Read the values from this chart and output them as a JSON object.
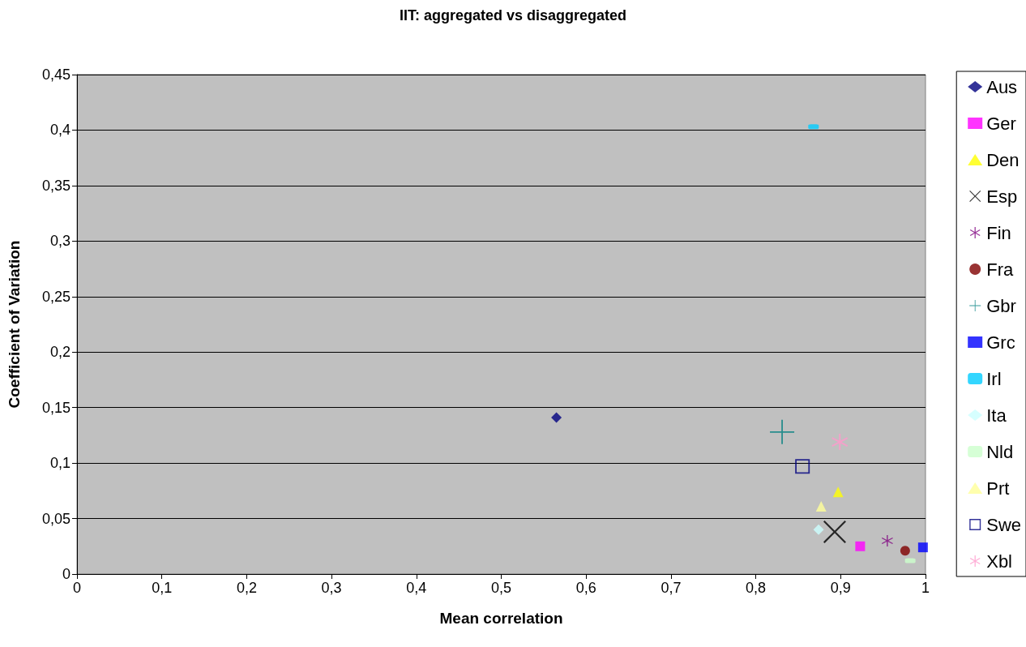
{
  "chart_data": {
    "type": "scatter",
    "title": "IIT: aggregated vs disaggregated",
    "xlabel": "Mean correlation",
    "ylabel": "Coefficient of Variation",
    "xlim": [
      0,
      1
    ],
    "ylim": [
      0,
      0.45
    ],
    "xticks": [
      0,
      {
        "value": 0.1,
        "label": "0,1"
      },
      {
        "value": 0.2,
        "label": "0,2"
      },
      {
        "value": 0.3,
        "label": "0,3"
      },
      {
        "value": 0.4,
        "label": "0,4"
      },
      {
        "value": 0.5,
        "label": "0,5"
      },
      {
        "value": 0.6,
        "label": "0,6"
      },
      {
        "value": 0.7,
        "label": "0,7"
      },
      {
        "value": 0.8,
        "label": "0,8"
      },
      {
        "value": 0.9,
        "label": "0,9"
      },
      1
    ],
    "yticks": [
      0,
      {
        "value": 0.05,
        "label": "0,05"
      },
      {
        "value": 0.1,
        "label": "0,1"
      },
      {
        "value": 0.15,
        "label": "0,15"
      },
      {
        "value": 0.2,
        "label": "0,2"
      },
      {
        "value": 0.25,
        "label": "0,25"
      },
      {
        "value": 0.3,
        "label": "0,3"
      },
      {
        "value": 0.35,
        "label": "0,35"
      },
      {
        "value": 0.4,
        "label": "0,4"
      },
      {
        "value": 0.45,
        "label": "0,45"
      }
    ],
    "grid": "y",
    "legend": "right",
    "series": [
      {
        "name": "Aus",
        "color": "#000080",
        "marker": "diamond",
        "x": [
          0.565
        ],
        "values": [
          0.141
        ]
      },
      {
        "name": "Ger",
        "color": "#ff00ff",
        "marker": "square",
        "x": [
          0.923
        ],
        "values": [
          0.025
        ]
      },
      {
        "name": "Den",
        "color": "#ffff00",
        "marker": "triangle",
        "x": [
          0.897
        ],
        "values": [
          0.074
        ]
      },
      {
        "name": "Esp",
        "color": "#000000",
        "marker": "cross",
        "x": [
          0.893
        ],
        "values": [
          0.038
        ]
      },
      {
        "name": "Fin",
        "color": "#800080",
        "marker": "cross",
        "x": [
          0.955
        ],
        "values": [
          0.03
        ]
      },
      {
        "name": "Fra",
        "color": "#800000",
        "marker": "circle",
        "x": [
          0.976
        ],
        "values": [
          0.021
        ]
      },
      {
        "name": "Gbr",
        "color": "#008080",
        "marker": "cross",
        "x": [
          0.831
        ],
        "values": [
          0.128
        ]
      },
      {
        "name": "Grc",
        "color": "#0000ff",
        "marker": "square",
        "x": [
          0.997
        ],
        "values": [
          0.024
        ]
      },
      {
        "name": "Irl",
        "color": "#00ccff",
        "marker": "square",
        "x": [
          0.868
        ],
        "values": [
          0.403
        ]
      },
      {
        "name": "Ita",
        "color": "#ccffff",
        "marker": "diamond",
        "x": [
          0.874
        ],
        "values": [
          0.04
        ]
      },
      {
        "name": "Nld",
        "color": "#ccffcc",
        "marker": "square",
        "x": [
          0.982
        ],
        "values": [
          0.012
        ]
      },
      {
        "name": "Prt",
        "color": "#ffff99",
        "marker": "triangle",
        "x": [
          0.877
        ],
        "values": [
          0.061
        ]
      },
      {
        "name": "Swe",
        "color": "#000080",
        "marker": "square",
        "x": [
          0.855
        ],
        "values": [
          0.097
        ]
      },
      {
        "name": "Xbl",
        "color": "#ff99cc",
        "marker": "cross",
        "x": [
          0.899
        ],
        "values": [
          0.119
        ]
      }
    ]
  }
}
